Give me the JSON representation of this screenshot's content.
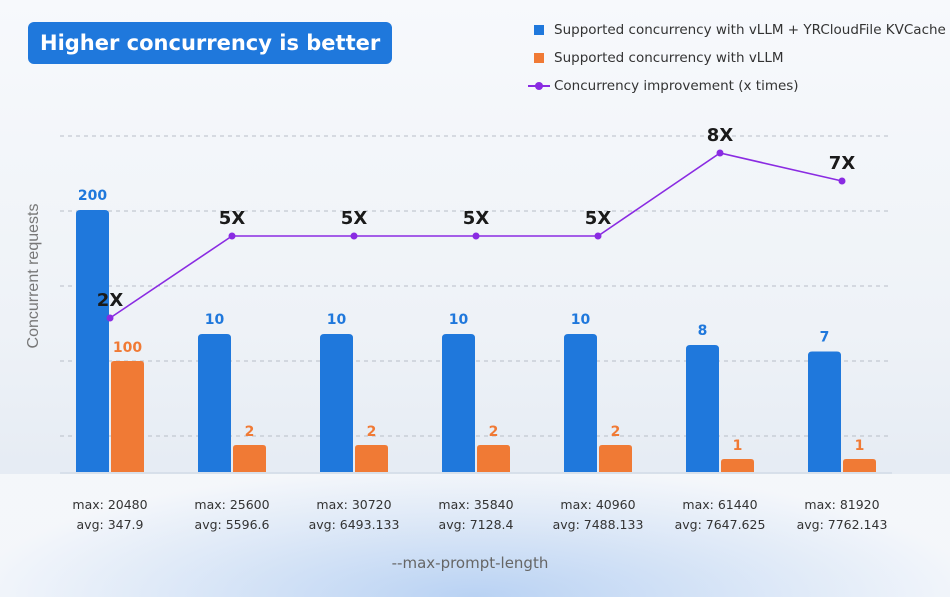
{
  "badge": "Higher concurrency is better",
  "legend": [
    {
      "label": "Supported concurrency with vLLM + YRCloudFile KVCache",
      "color": "#1f78dc",
      "kind": "square"
    },
    {
      "label": "Supported concurrency with vLLM",
      "color": "#f07a35",
      "kind": "square"
    },
    {
      "label": "Concurrency improvement (x times)",
      "color": "#8a2be2",
      "kind": "line"
    }
  ],
  "chart_data": {
    "type": "bar",
    "title": "Higher concurrency is better",
    "xlabel": "--max-prompt-length",
    "ylabel": "Concurrent requests",
    "y_scale": "log",
    "grid": true,
    "legend_position": "top-right",
    "categories": [
      {
        "line1": "max: 20480",
        "line2": "avg: 347.9"
      },
      {
        "line1": "max: 25600",
        "line2": "avg: 5596.6"
      },
      {
        "line1": "max: 30720",
        "line2": "avg: 6493.133"
      },
      {
        "line1": "max: 35840",
        "line2": "avg: 7128.4"
      },
      {
        "line1": "max: 40960",
        "line2": "avg: 7488.133"
      },
      {
        "line1": "max: 61440",
        "line2": "avg: 7647.625"
      },
      {
        "line1": "max: 81920",
        "line2": "avg: 7762.143"
      }
    ],
    "series": [
      {
        "name": "Supported concurrency with vLLM + YRCloudFile KVCache",
        "color": "#1f78dc",
        "values": [
          200,
          10,
          10,
          10,
          10,
          8,
          7
        ]
      },
      {
        "name": "Supported concurrency with vLLM",
        "color": "#f07a35",
        "values": [
          100,
          2,
          2,
          2,
          2,
          1,
          1
        ]
      }
    ],
    "improvement": {
      "name": "Concurrency improvement (x times)",
      "color": "#8a2be2",
      "values": [
        2,
        5,
        5,
        5,
        5,
        8,
        7
      ],
      "labels": [
        "2X",
        "5X",
        "5X",
        "5X",
        "5X",
        "8X",
        "7X"
      ]
    }
  }
}
